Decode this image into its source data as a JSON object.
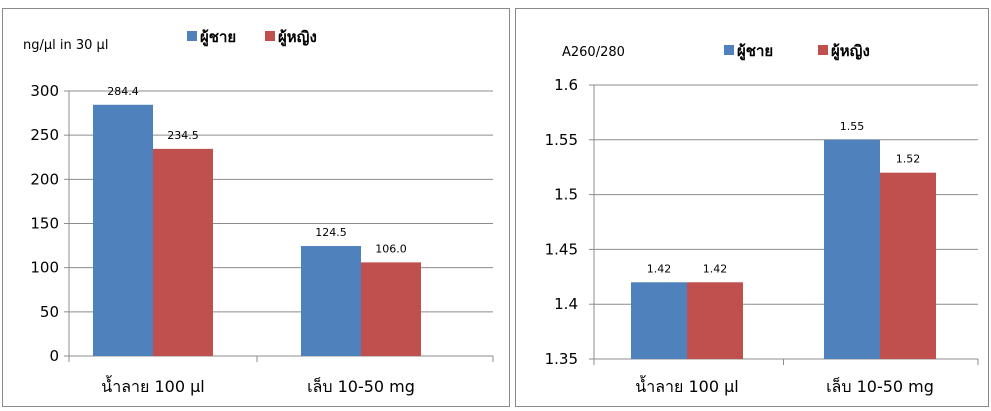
{
  "chart_data": [
    {
      "type": "bar",
      "ylabel": "ng/µl in 30 µl",
      "categories": [
        "น้ำลาย 100 µl",
        "เล็บ 10-50 mg"
      ],
      "series": [
        {
          "name": "ผู้ชาย",
          "color": "#4f81bd",
          "values": [
            284.4,
            124.5
          ],
          "labels": [
            "284.4",
            "124.5"
          ]
        },
        {
          "name": "ผู้หญิง",
          "color": "#c0504d",
          "values": [
            234.5,
            106.0
          ],
          "labels": [
            "234.5",
            "106.0"
          ]
        }
      ],
      "ylim": [
        0,
        300
      ],
      "yticks": [
        0,
        50,
        100,
        150,
        200,
        250,
        300
      ],
      "ytick_labels": [
        "0",
        "50",
        "100",
        "150",
        "200",
        "250",
        "300"
      ],
      "grid": true,
      "legend": "top"
    },
    {
      "type": "bar",
      "ylabel": "A260/280",
      "categories": [
        "น้ำลาย 100 µl",
        "เล็บ 10-50 mg"
      ],
      "series": [
        {
          "name": "ผู้ชาย",
          "color": "#4f81bd",
          "values": [
            1.42,
            1.55
          ],
          "labels": [
            "1.42",
            "1.55"
          ]
        },
        {
          "name": "ผู้หญิง",
          "color": "#c0504d",
          "values": [
            1.42,
            1.52
          ],
          "labels": [
            "1.42",
            "1.52"
          ]
        }
      ],
      "ylim": [
        1.35,
        1.6
      ],
      "yticks": [
        1.35,
        1.4,
        1.45,
        1.5,
        1.55,
        1.6
      ],
      "ytick_labels": [
        "1.35",
        "1.4",
        "1.45",
        "1.5",
        "1.55",
        "1.6"
      ],
      "grid": true,
      "legend": "top"
    }
  ]
}
